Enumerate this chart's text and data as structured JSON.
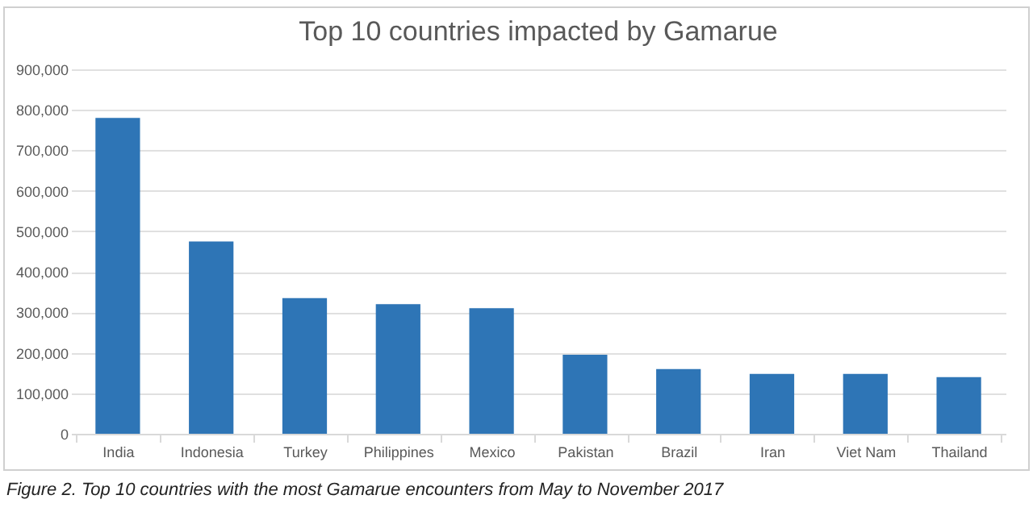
{
  "chart_data": {
    "type": "bar",
    "title": "Top 10 countries impacted by Gamarue",
    "categories": [
      "India",
      "Indonesia",
      "Turkey",
      "Philippines",
      "Mexico",
      "Pakistan",
      "Brazil",
      "Iran",
      "Viet Nam",
      "Thailand"
    ],
    "values": [
      780000,
      475000,
      335000,
      320000,
      310000,
      195000,
      160000,
      148000,
      148000,
      140000
    ],
    "color": "#2e75b6",
    "ylim": [
      0,
      900000
    ],
    "yticks": [
      0,
      {
        "value": 100000,
        "label": "100,000"
      },
      {
        "value": 200000,
        "label": "200,000"
      },
      {
        "value": 300000,
        "label": "300,000"
      },
      {
        "value": 400000,
        "label": "400,000"
      },
      {
        "value": 500000,
        "label": "500,000"
      },
      {
        "value": 600000,
        "label": "600,000"
      },
      {
        "value": 700000,
        "label": "700,000"
      },
      {
        "value": 800000,
        "label": "800,000"
      },
      {
        "value": 900000,
        "label": "900,000"
      }
    ],
    "grid": "y",
    "annotations": [
      "Figure 2. Top 10 countries with the most Gamarue encounters from May to November 2017"
    ]
  }
}
